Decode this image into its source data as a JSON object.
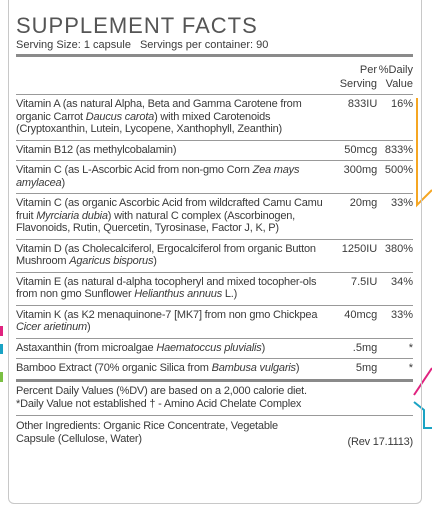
{
  "header": {
    "title": "SUPPLEMENT FACTS",
    "serving_size": "Serving Size:  1 capsule",
    "servings_per_container": "Servings per container: 90"
  },
  "table": {
    "columns": [
      "Per Serving",
      "%Daily Value"
    ],
    "rows": [
      {
        "description": [
          "Vitamin A (as natural Alpha, Beta and Gamma Carotene from organic Carrot ",
          {
            "italic": "Daucus carota"
          },
          ") with mixed Carotenoids (Cryptoxanthin, Lutein, Lycopene, Xanthophyll, Zeanthin)"
        ],
        "amount": "833IU",
        "daily_value": "16%"
      },
      {
        "description": [
          "Vitamin B12 (as methylcobalamin)"
        ],
        "amount": "50mcg",
        "daily_value": "833%"
      },
      {
        "description": [
          "Vitamin C (as L-Ascorbic Acid from non-gmo Corn ",
          {
            "italic": "Zea mays amylacea"
          },
          ")"
        ],
        "amount": "300mg",
        "daily_value": "500%"
      },
      {
        "description": [
          "Vitamin C (as organic Ascorbic Acid from wildcrafted Camu Camu fruit ",
          {
            "italic": "Myrciaria dubia"
          },
          ") with natural C complex (Ascorbinogen, Flavonoids, Rutin, Quercetin, Tyrosinase, Factor J, K, P)"
        ],
        "amount": "20mg",
        "daily_value": "33%"
      },
      {
        "description": [
          "Vitamin D (as Cholecalciferol, Ergocalciferol from organic Button Mushroom ",
          {
            "italic": "Agaricus bisporus"
          },
          ")"
        ],
        "amount": "1250IU",
        "daily_value": "380%"
      },
      {
        "description": [
          "Vitamin E (as natural d-alpha tocopheryl and mixed tocopher-ols from non gmo Sunflower ",
          {
            "italic": "Helianthus annuus"
          },
          " L.)"
        ],
        "amount": "7.5IU",
        "daily_value": "34%"
      },
      {
        "description": [
          "Vitamin K (as K2 menaquinone-7 [MK7] from non gmo Chickpea ",
          {
            "italic": "Cicer arietinum"
          },
          ")"
        ],
        "amount": "40mcg",
        "daily_value": "33%"
      },
      {
        "description": [
          "Astaxanthin (from microalgae ",
          {
            "italic": "Haematoccus pluvialis"
          },
          ")"
        ],
        "amount": ".5mg",
        "daily_value": "*"
      },
      {
        "description": [
          "Bamboo Extract (70% organic Silica from ",
          {
            "italic": "Bambusa vulgaris"
          },
          ")"
        ],
        "amount": "5mg",
        "daily_value": "*"
      }
    ]
  },
  "footnotes": [
    "Percent Daily Values (%DV) are based on a 2,000 calorie diet.",
    "*Daily Value not established  † - Amino Acid Chelate Complex"
  ],
  "other_ingredients": "Other Ingredients:  Organic Rice Concentrate, Vegetable Capsule (Cellulose, Water)",
  "revision": "(Rev 17.1113)"
}
